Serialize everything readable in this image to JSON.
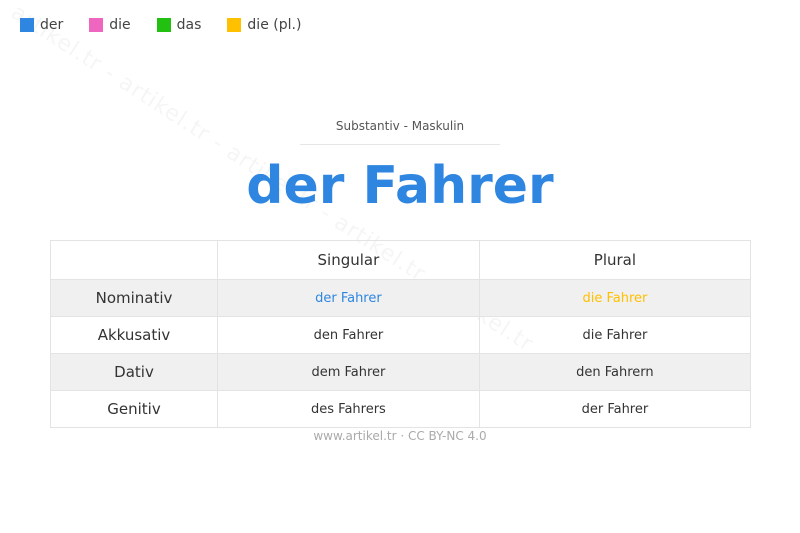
{
  "legend": [
    {
      "label": "der",
      "color": "#2f86e0"
    },
    {
      "label": "die",
      "color": "#ee66c0"
    },
    {
      "label": "das",
      "color": "#22c010"
    },
    {
      "label": "die (pl.)",
      "color": "#ffc000"
    }
  ],
  "watermark": "artikel.tr - artikel.tr - artikel.tr - artikel.tr - artikel.tr",
  "subtitle": "Substantiv  -  Maskulin",
  "title": "der Fahrer",
  "table": {
    "headers": [
      "",
      "Singular",
      "Plural"
    ],
    "rows": [
      {
        "case": "Nominativ",
        "singular": "der Fahrer",
        "plural": "die Fahrer"
      },
      {
        "case": "Akkusativ",
        "singular": "den Fahrer",
        "plural": "die Fahrer"
      },
      {
        "case": "Dativ",
        "singular": "dem Fahrer",
        "plural": "den Fahrern"
      },
      {
        "case": "Genitiv",
        "singular": "des Fahrers",
        "plural": "der Fahrer"
      }
    ]
  },
  "footer": "www.artikel.tr · CC BY-NC 4.0"
}
